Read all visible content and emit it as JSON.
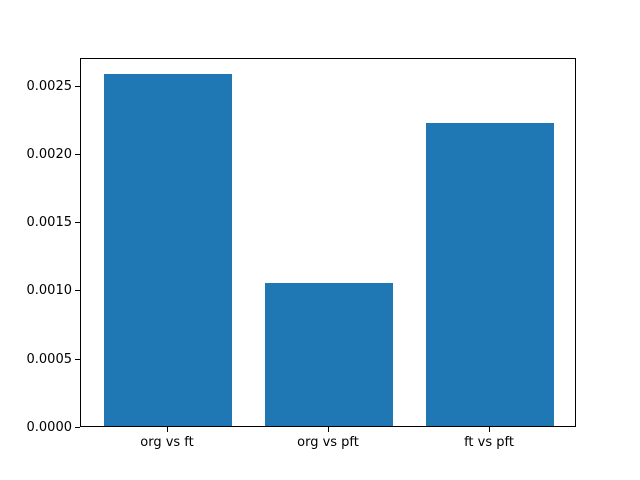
{
  "chart_data": {
    "type": "bar",
    "categories": [
      "org vs ft",
      "org vs pft",
      "ft vs pft"
    ],
    "values": [
      0.00258,
      0.00105,
      0.00222
    ],
    "title": "",
    "xlabel": "",
    "ylabel": "",
    "xlim": [
      -0.54,
      2.54
    ],
    "ylim": [
      0,
      0.002709
    ],
    "yticks": [
      0.0,
      0.0005,
      0.001,
      0.0015,
      0.002,
      0.0025
    ],
    "ytick_labels": [
      "0.0000",
      "0.0005",
      "0.0010",
      "0.0015",
      "0.0020",
      "0.0025"
    ],
    "bar_width_fraction": 0.8,
    "bar_color": "#1f77b4",
    "spine_color": "#000000",
    "text_color": "#000000",
    "background_color": "#ffffff",
    "grid": false,
    "legend": null
  }
}
